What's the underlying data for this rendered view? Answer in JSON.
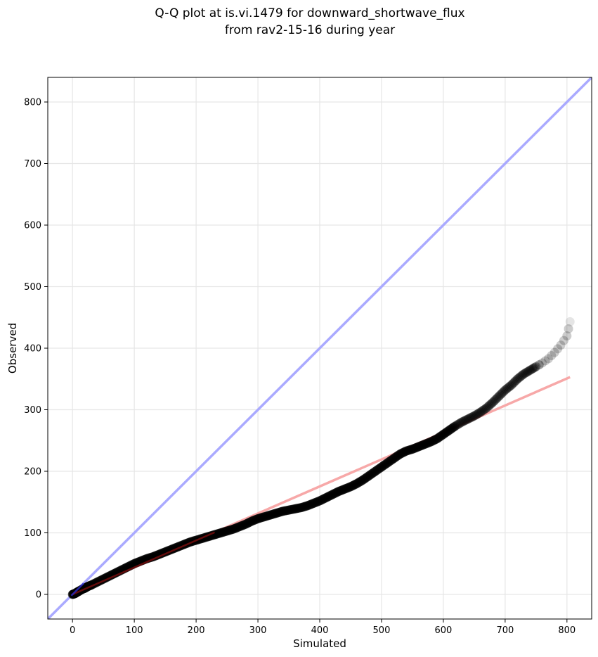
{
  "chart_data": {
    "type": "scatter",
    "title_line1": "Q-Q plot at is.vi.1479 for downward_shortwave_flux",
    "title_line2": "from rav2-15-16 during year",
    "xlabel": "Simulated",
    "ylabel": "Observed",
    "xlim": [
      -40,
      840
    ],
    "ylim": [
      -40,
      840
    ],
    "xticks": [
      0,
      100,
      200,
      300,
      400,
      500,
      600,
      700,
      800
    ],
    "yticks": [
      0,
      100,
      200,
      300,
      400,
      500,
      600,
      700,
      800
    ],
    "grid": true,
    "colors": {
      "points": "#000000",
      "identity_line": "#aaaaff",
      "fit_line": "#f7a8a8",
      "fit_line_dense": "#8b1010"
    },
    "identity_line": {
      "x": [
        -40,
        840
      ],
      "y": [
        -40,
        840
      ]
    },
    "fit_line": {
      "x": [
        0,
        805
      ],
      "y": [
        0,
        353
      ]
    },
    "series": [
      {
        "values": [
          [
            0,
            0
          ],
          [
            3,
            1
          ],
          [
            5,
            2
          ],
          [
            8,
            4
          ],
          [
            10,
            5
          ],
          [
            15,
            8
          ],
          [
            20,
            10
          ],
          [
            25,
            13
          ],
          [
            30,
            15
          ],
          [
            40,
            20
          ],
          [
            50,
            25
          ],
          [
            60,
            30
          ],
          [
            70,
            35
          ],
          [
            80,
            40
          ],
          [
            90,
            45
          ],
          [
            100,
            50
          ],
          [
            110,
            54
          ],
          [
            120,
            58
          ],
          [
            130,
            61
          ],
          [
            140,
            65
          ],
          [
            150,
            69
          ],
          [
            160,
            73
          ],
          [
            170,
            77
          ],
          [
            180,
            81
          ],
          [
            190,
            85
          ],
          [
            200,
            88
          ],
          [
            210,
            91
          ],
          [
            220,
            94
          ],
          [
            230,
            97
          ],
          [
            240,
            100
          ],
          [
            250,
            103
          ],
          [
            260,
            106
          ],
          [
            270,
            110
          ],
          [
            280,
            114
          ],
          [
            290,
            119
          ],
          [
            300,
            123
          ],
          [
            310,
            126
          ],
          [
            320,
            129
          ],
          [
            330,
            132
          ],
          [
            340,
            135
          ],
          [
            350,
            137
          ],
          [
            360,
            139
          ],
          [
            370,
            141
          ],
          [
            380,
            144
          ],
          [
            390,
            148
          ],
          [
            400,
            152
          ],
          [
            410,
            157
          ],
          [
            420,
            162
          ],
          [
            430,
            167
          ],
          [
            440,
            171
          ],
          [
            450,
            175
          ],
          [
            460,
            180
          ],
          [
            470,
            186
          ],
          [
            480,
            193
          ],
          [
            490,
            200
          ],
          [
            500,
            207
          ],
          [
            510,
            214
          ],
          [
            520,
            221
          ],
          [
            530,
            228
          ],
          [
            540,
            233
          ],
          [
            550,
            236
          ],
          [
            560,
            240
          ],
          [
            570,
            244
          ],
          [
            580,
            248
          ],
          [
            590,
            253
          ],
          [
            600,
            260
          ],
          [
            610,
            267
          ],
          [
            620,
            274
          ],
          [
            630,
            280
          ],
          [
            640,
            285
          ],
          [
            650,
            290
          ],
          [
            660,
            296
          ],
          [
            670,
            303
          ],
          [
            680,
            312
          ],
          [
            690,
            322
          ],
          [
            700,
            332
          ],
          [
            710,
            340
          ],
          [
            720,
            350
          ],
          [
            730,
            358
          ],
          [
            740,
            364
          ],
          [
            750,
            370
          ],
          [
            760,
            376
          ],
          [
            770,
            383
          ],
          [
            780,
            393
          ],
          [
            790,
            405
          ],
          [
            800,
            420
          ],
          [
            805,
            443
          ]
        ]
      }
    ]
  }
}
